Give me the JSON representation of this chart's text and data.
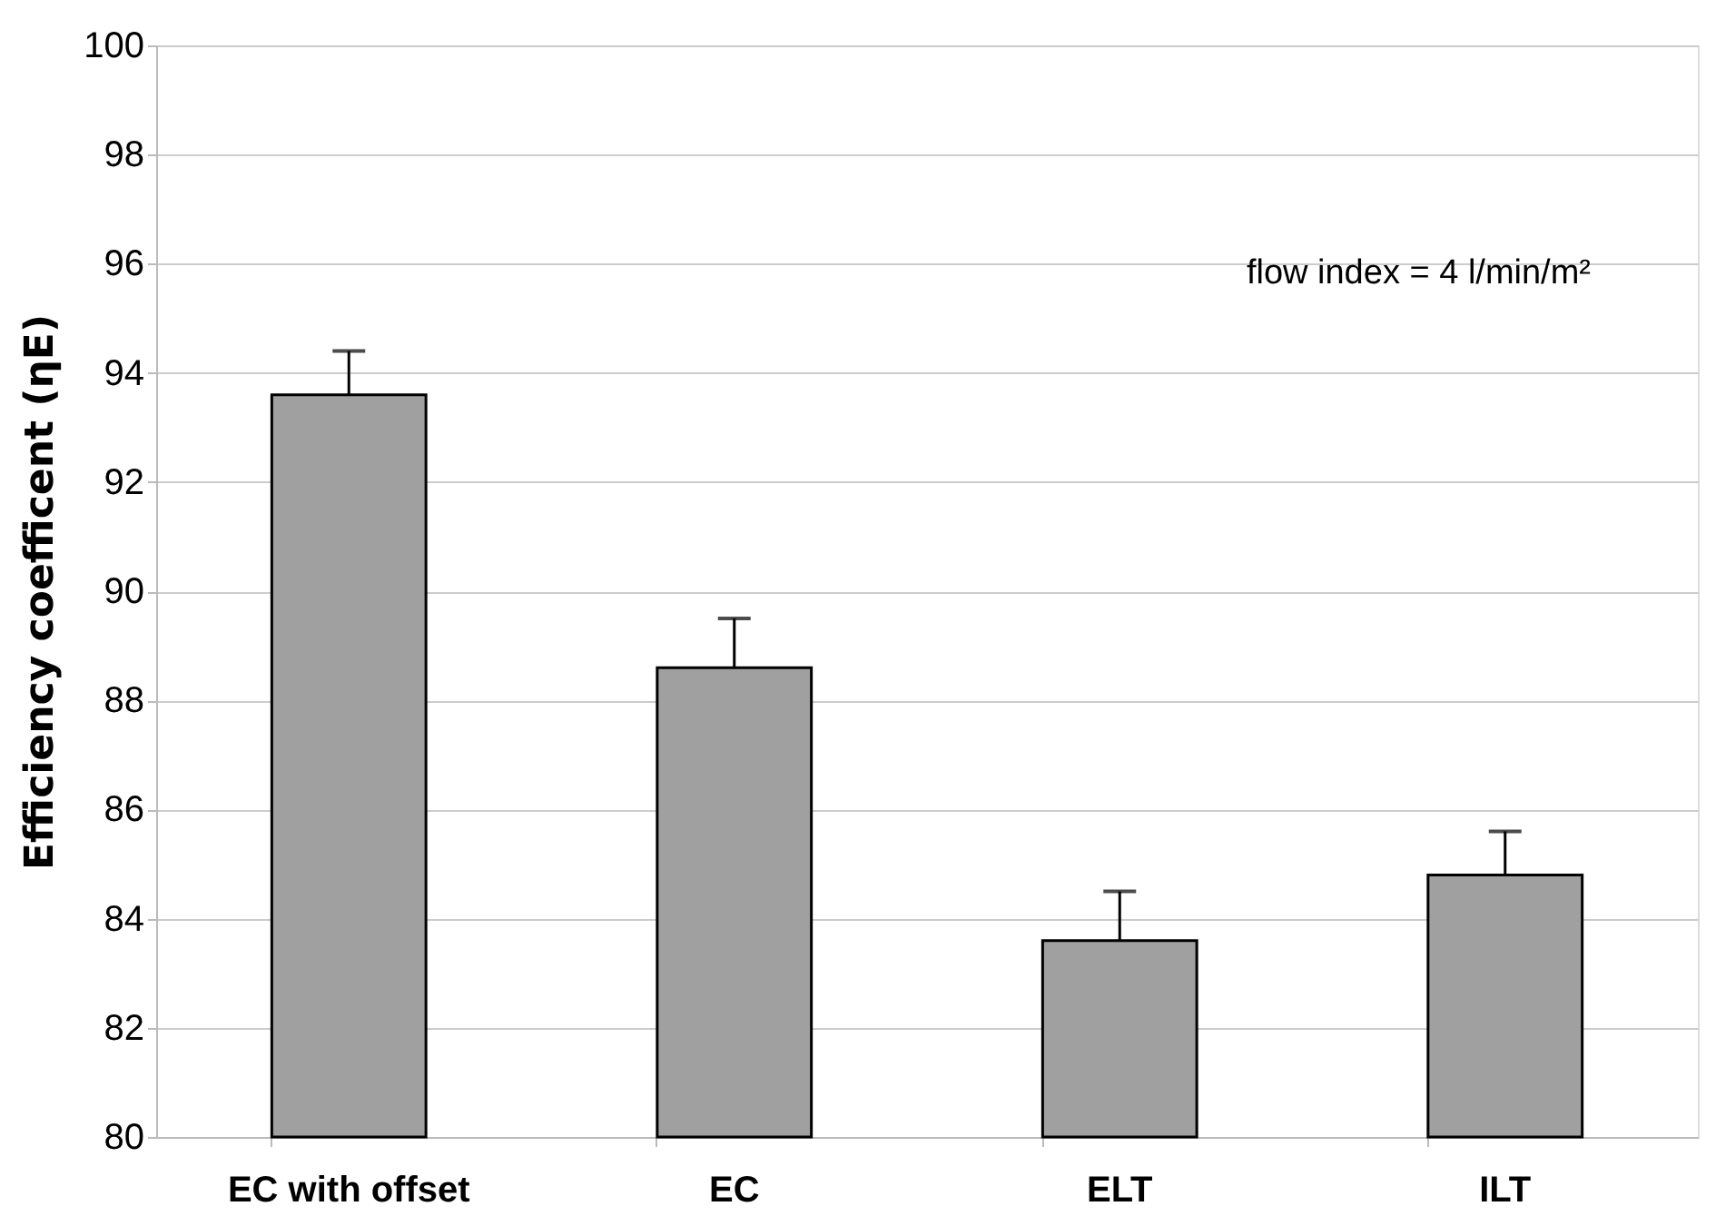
{
  "chart_data": {
    "type": "bar",
    "ylabel": "Efficiency coefficent (ηE)",
    "categories": [
      "EC with offset",
      "EC",
      "ELT",
      "ILT"
    ],
    "values": [
      93.6,
      88.6,
      83.6,
      84.8
    ],
    "errors": [
      [
        93.6,
        94.4
      ],
      [
        88.6,
        89.5
      ],
      [
        83.6,
        84.5
      ],
      [
        84.8,
        85.6
      ]
    ],
    "color": "#a0a0a0",
    "ylim": [
      80,
      100
    ],
    "yticks": [
      80,
      82,
      84,
      86,
      88,
      90,
      92,
      94,
      96,
      98,
      100
    ],
    "grid": "y",
    "annotations": [
      "flow index = 4 l/min/m²"
    ]
  }
}
